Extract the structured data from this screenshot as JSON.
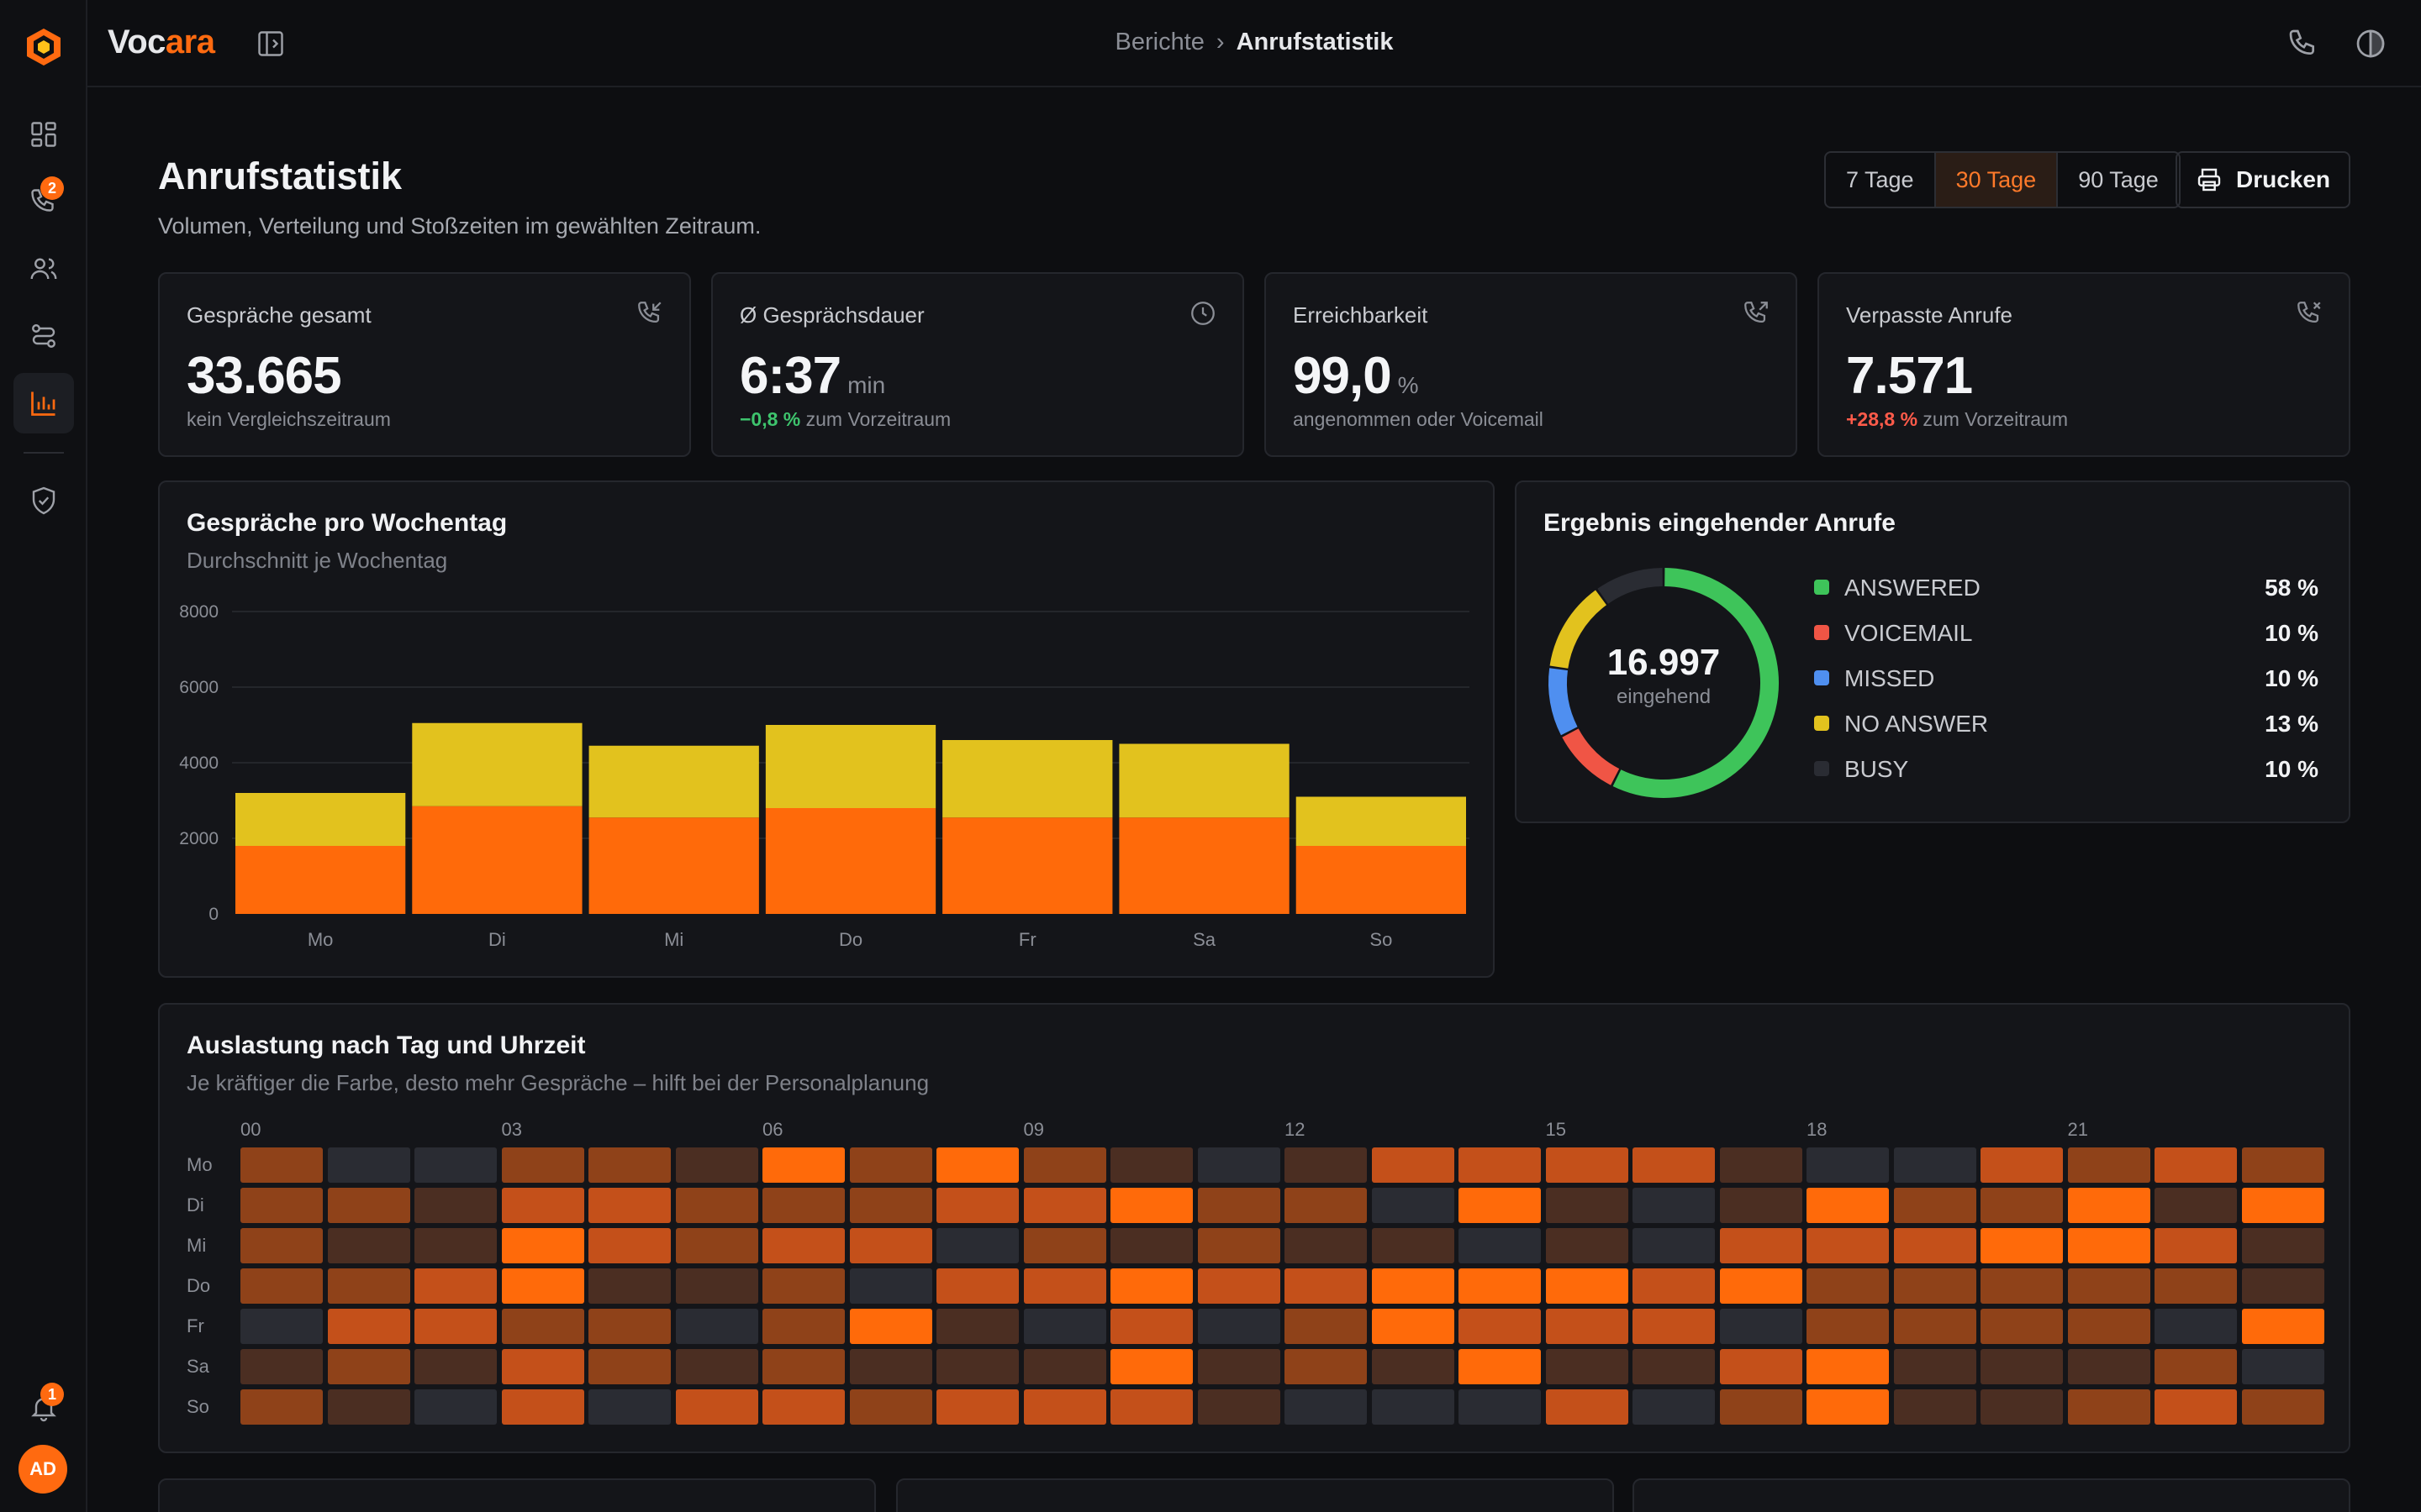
{
  "app": {
    "brand_prefix": "Voc",
    "brand_suffix": "ara"
  },
  "breadcrumb": {
    "parent": "Berichte",
    "separator": "›",
    "current": "Anrufstatistik"
  },
  "sidebar": {
    "items": [
      {
        "name": "dashboard",
        "icon": "grid-icon"
      },
      {
        "name": "calls",
        "icon": "phone-icon",
        "badge": "2"
      },
      {
        "name": "contacts",
        "icon": "users-icon"
      },
      {
        "name": "routing",
        "icon": "route-icon"
      },
      {
        "name": "reports",
        "icon": "bar-chart-icon",
        "active": true
      },
      {
        "name": "security",
        "icon": "shield-check-icon"
      }
    ],
    "notifications_badge": "1",
    "avatar_initials": "AD"
  },
  "page": {
    "title": "Anrufstatistik",
    "subtitle": "Volumen, Verteilung und Stoßzeiten im gewählten Zeitraum.",
    "ranges": [
      "7 Tage",
      "30 Tage",
      "90 Tage"
    ],
    "selected_range": "30 Tage",
    "print_label": "Drucken"
  },
  "kpis": [
    {
      "label": "Gespräche gesamt",
      "value": "33.665",
      "unit": "",
      "delta": "",
      "sub": "kein Vergleichszeitraum",
      "icon": "phone-incoming-icon"
    },
    {
      "label": "Ø Gesprächsdauer",
      "value": "6:37",
      "unit": "min",
      "delta": "−0,8 %",
      "delta_type": "pos",
      "sub": " zum Vorzeitraum",
      "icon": "clock-icon"
    },
    {
      "label": "Erreichbarkeit",
      "value": "99,0",
      "unit": "%",
      "delta": "",
      "sub": "angenommen oder Voicemail",
      "icon": "phone-outgoing-icon"
    },
    {
      "label": "Verpasste Anrufe",
      "value": "7.571",
      "unit": "",
      "delta": "+28,8 %",
      "delta_type": "neg",
      "sub": " zum Vorzeitraum",
      "icon": "phone-missed-icon"
    }
  ],
  "weekday_card": {
    "title": "Gespräche pro Wochentag",
    "subtitle": "Durchschnitt je Wochentag"
  },
  "outcome_card": {
    "title": "Ergebnis eingehender Anrufe",
    "center_value": "16.997",
    "center_label": "eingehend"
  },
  "heatmap_card": {
    "title": "Auslastung nach Tag und Uhrzeit",
    "subtitle": "Je kräftiger die Farbe, desto mehr Gespräche – hilft bei der Personalplanung"
  },
  "colors": {
    "accent": "#ff6a10",
    "yellow": "#e2c21e",
    "answered": "#3ec45a",
    "voicemail": "#f05545",
    "missed": "#4f8ff0",
    "no_answer": "#e2c21e",
    "busy": "#2a2c33"
  },
  "chart_data": [
    {
      "type": "bar",
      "stacked": true,
      "categories": [
        "Mo",
        "Di",
        "Mi",
        "Do",
        "Fr",
        "Sa",
        "So"
      ],
      "series": [
        {
          "color": "#ff6a0a",
          "values": [
            1800,
            2850,
            2550,
            2800,
            2550,
            2550,
            1800
          ]
        },
        {
          "color": "#e2c21e",
          "values": [
            1400,
            2200,
            1900,
            2200,
            2050,
            1950,
            1300
          ]
        }
      ],
      "ylim": [
        0,
        8000
      ],
      "yticks": [
        "8000",
        "6000",
        "4000",
        "2000",
        "0"
      ]
    },
    {
      "type": "pie",
      "donut": true,
      "slices": [
        {
          "label": "ANSWERED",
          "percent": "58 %",
          "value": 58,
          "color": "#3ec45a"
        },
        {
          "label": "VOICEMAIL",
          "percent": "10 %",
          "value": 10,
          "color": "#f05545"
        },
        {
          "label": "MISSED",
          "percent": "10 %",
          "value": 10,
          "color": "#4f8ff0"
        },
        {
          "label": "NO ANSWER",
          "percent": "13 %",
          "value": 13,
          "color": "#e2c21e"
        },
        {
          "label": "BUSY",
          "percent": "10 %",
          "value": 10,
          "color": "#2a2c33"
        }
      ]
    },
    {
      "type": "heatmap",
      "rows": [
        "Mo",
        "Di",
        "Mi",
        "Do",
        "Fr",
        "Sa",
        "So"
      ],
      "hour_labels": [
        "00",
        "03",
        "06",
        "09",
        "12",
        "15",
        "18",
        "21"
      ],
      "scale": [
        0,
        4
      ],
      "values": [
        [
          2,
          0,
          0,
          2,
          2,
          1,
          4,
          2,
          4,
          2,
          1,
          0,
          1,
          3,
          3,
          3,
          3,
          1,
          0,
          0,
          3,
          2,
          3,
          2
        ],
        [
          2,
          2,
          1,
          3,
          3,
          2,
          2,
          2,
          3,
          3,
          4,
          2,
          2,
          0,
          4,
          1,
          0,
          1,
          4,
          2,
          2,
          4,
          1,
          4
        ],
        [
          2,
          1,
          1,
          4,
          3,
          2,
          3,
          3,
          0,
          2,
          1,
          2,
          1,
          1,
          0,
          1,
          0,
          3,
          3,
          3,
          4,
          4,
          3,
          1
        ],
        [
          2,
          2,
          3,
          4,
          1,
          1,
          2,
          0,
          3,
          3,
          4,
          3,
          3,
          4,
          4,
          4,
          3,
          4,
          2,
          2,
          2,
          2,
          2,
          1
        ],
        [
          0,
          3,
          3,
          2,
          2,
          0,
          2,
          4,
          1,
          0,
          3,
          0,
          2,
          4,
          3,
          3,
          3,
          0,
          2,
          2,
          2,
          2,
          0,
          4
        ],
        [
          1,
          2,
          1,
          3,
          2,
          1,
          2,
          1,
          1,
          1,
          4,
          1,
          2,
          1,
          4,
          1,
          1,
          3,
          4,
          1,
          1,
          1,
          2,
          0
        ],
        [
          2,
          1,
          0,
          3,
          0,
          3,
          3,
          2,
          3,
          3,
          3,
          1,
          0,
          0,
          0,
          3,
          0,
          2,
          4,
          1,
          1,
          2,
          3,
          2
        ]
      ]
    }
  ]
}
